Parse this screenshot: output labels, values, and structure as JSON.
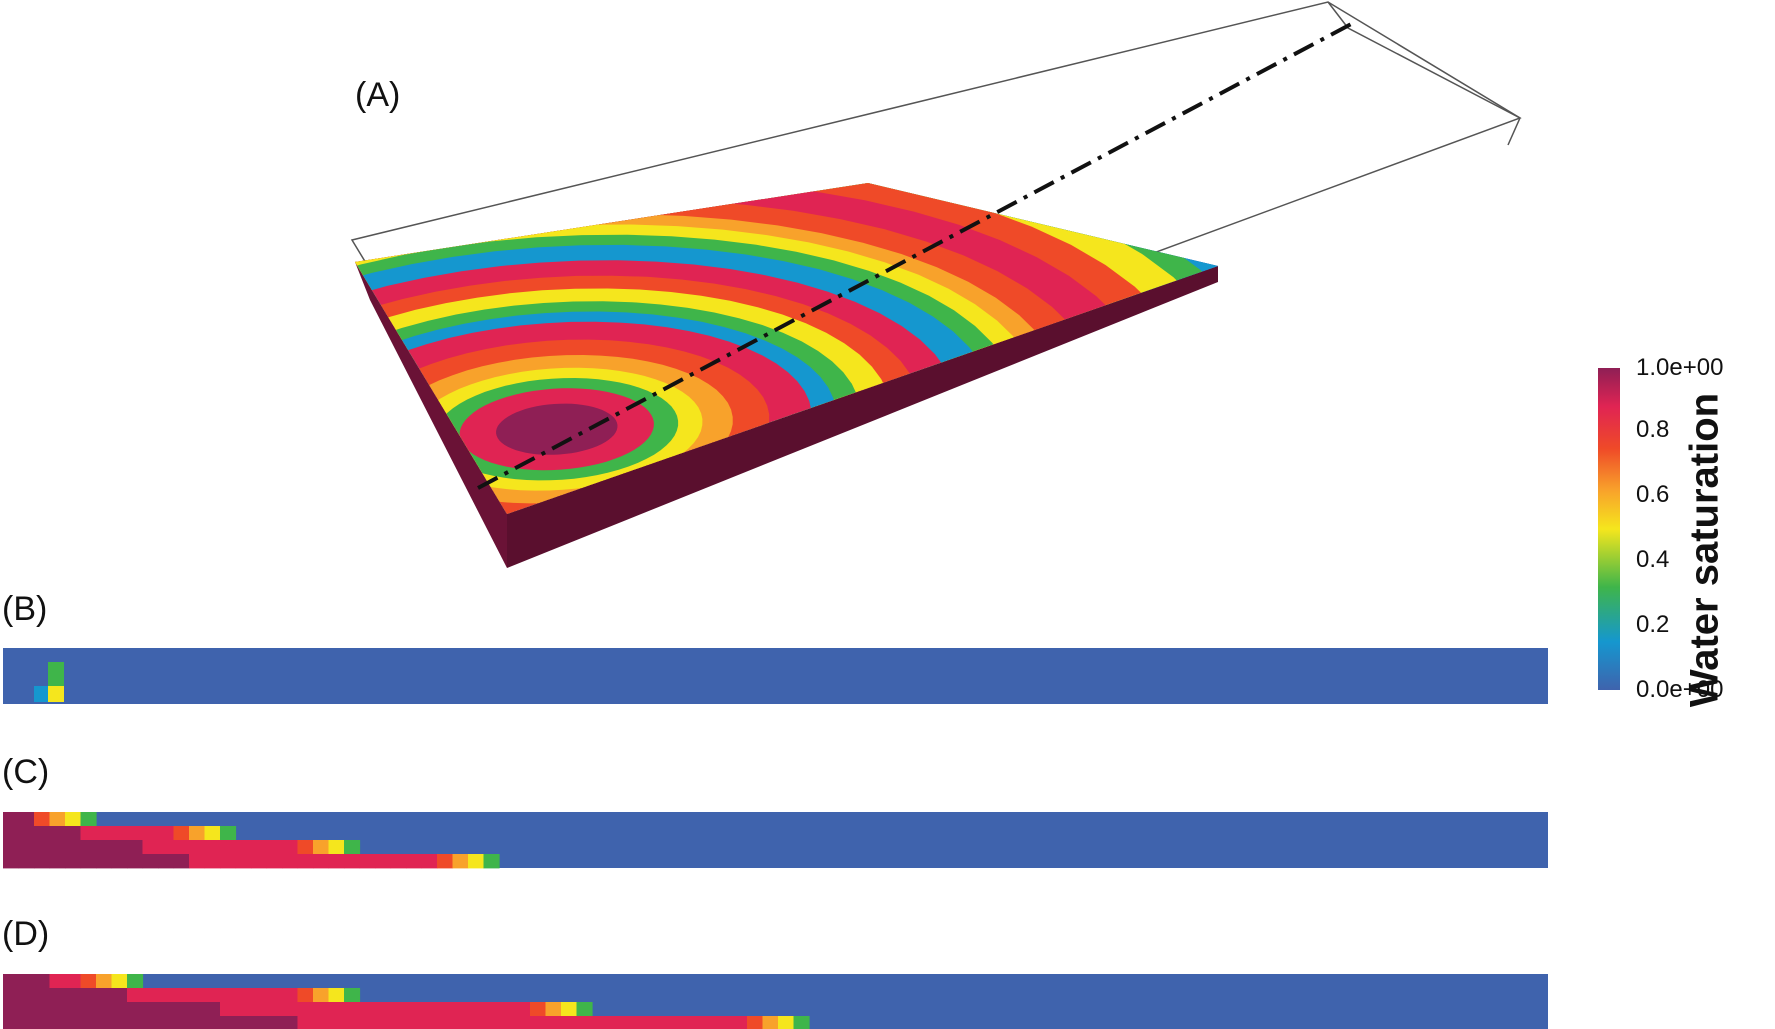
{
  "panels": {
    "a": "(A)",
    "b": "(B)",
    "c": "(C)",
    "d": "(D)"
  },
  "colorbar": {
    "title": "Water saturation",
    "ticks": [
      "1.0e+00",
      "0.8",
      "0.6",
      "0.4",
      "0.2",
      "0.0e+00"
    ],
    "colors": [
      "#3f63ad",
      "#1597cf",
      "#3fb54a",
      "#f5e61d",
      "#f8a22b",
      "#ef4a28",
      "#e02453",
      "#8f1f55"
    ]
  },
  "colors": {
    "background_fluid": "#3f63ad",
    "wire": "#555555",
    "side_face": "#6a1236"
  },
  "slices": {
    "b_front": 0.05,
    "c_front": 0.32,
    "d_front": 0.52
  }
}
